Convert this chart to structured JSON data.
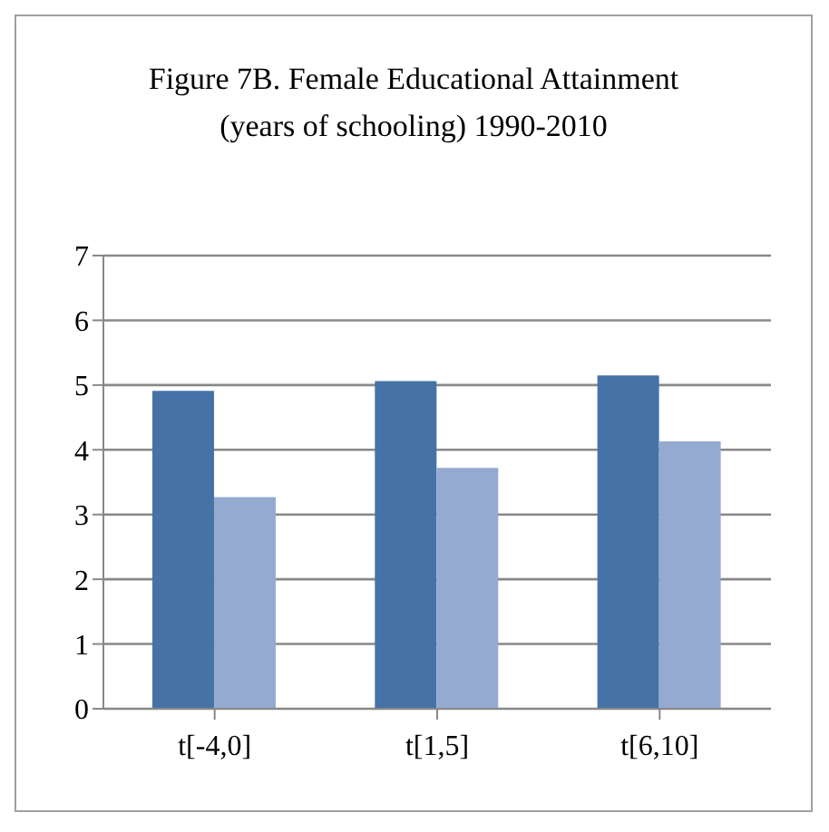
{
  "chart_data": {
    "type": "bar",
    "title": "Figure 7B. Female Educational Attainment (years of schooling) 1990-2010",
    "categories": [
      "t[-4,0]",
      "t[1,5]",
      "t[6,10]"
    ],
    "series": [
      {
        "color": "#4572a7",
        "values": [
          4.91,
          5.06,
          5.15
        ]
      },
      {
        "color": "#94aad1",
        "values": [
          3.27,
          3.72,
          4.13
        ]
      }
    ],
    "ylim": [
      0,
      7
    ],
    "yticks": [
      0,
      1,
      2,
      3,
      4,
      5,
      6,
      7
    ],
    "grid": "y",
    "legend": false
  }
}
